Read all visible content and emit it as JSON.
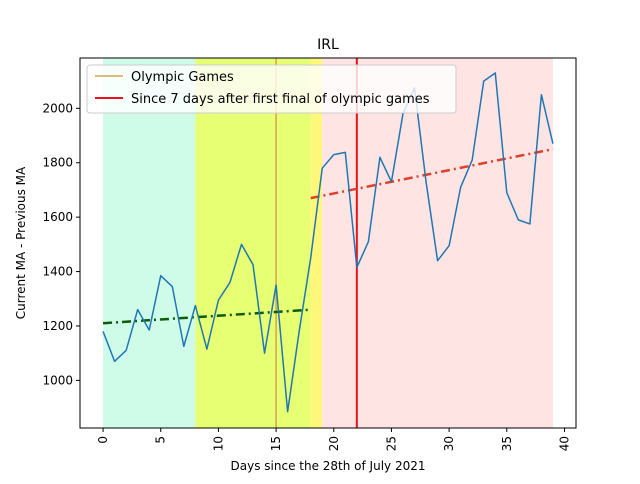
{
  "chart_data": {
    "type": "line",
    "title": "IRL",
    "xlabel": "Days since the 28th of July 2021",
    "ylabel": "Current MA - Previous MA",
    "xlim": [
      -2,
      41
    ],
    "ylim": [
      825,
      2185
    ],
    "xticks": [
      0,
      5,
      10,
      15,
      20,
      25,
      30,
      35,
      40
    ],
    "yticks": [
      1000,
      1200,
      1400,
      1600,
      1800,
      2000
    ],
    "grid": false,
    "legend_position": "top-left",
    "background_spans": [
      {
        "x0": 0,
        "x1": 8,
        "color": "#cffce9"
      },
      {
        "x0": 8,
        "x1": 18,
        "color": "#e6ff73"
      },
      {
        "x0": 18,
        "x1": 19,
        "color": "#fff77a"
      },
      {
        "x0": 19,
        "x1": 39,
        "color": "#ffe4e4"
      }
    ],
    "series": [
      {
        "kind": "line",
        "color": "#1f77b4",
        "x": [
          0,
          1,
          2,
          3,
          4,
          5,
          6,
          7,
          8,
          9,
          10,
          11,
          12,
          13,
          14,
          15,
          16,
          17,
          18,
          19,
          20,
          21,
          22,
          23,
          24,
          25,
          26,
          27,
          28,
          29,
          30,
          31,
          32,
          33,
          34,
          35,
          36,
          37,
          38,
          39
        ],
        "values": [
          1180,
          1070,
          1110,
          1260,
          1185,
          1385,
          1345,
          1125,
          1275,
          1115,
          1295,
          1360,
          1500,
          1425,
          1100,
          1350,
          885,
          1180,
          1450,
          1780,
          1830,
          1838,
          1415,
          1510,
          1820,
          1730,
          1980,
          2075,
          1730,
          1440,
          1495,
          1710,
          1810,
          2100,
          2130,
          1690,
          1590,
          1575,
          2050,
          1870
        ]
      },
      {
        "kind": "trend",
        "color": "#0d5c0d",
        "x": [
          0,
          18
        ],
        "values": [
          1210,
          1260
        ]
      },
      {
        "kind": "trend",
        "color": "#e0402a",
        "x": [
          18,
          39
        ],
        "values": [
          1670,
          1850
        ]
      }
    ],
    "vertical_lines": [
      {
        "name": "Olympic Games",
        "x": 15,
        "color": "#d9a050"
      },
      {
        "name": "Since 7 days after first final of olympic games",
        "x": 22,
        "color": "#e8141a"
      }
    ]
  }
}
